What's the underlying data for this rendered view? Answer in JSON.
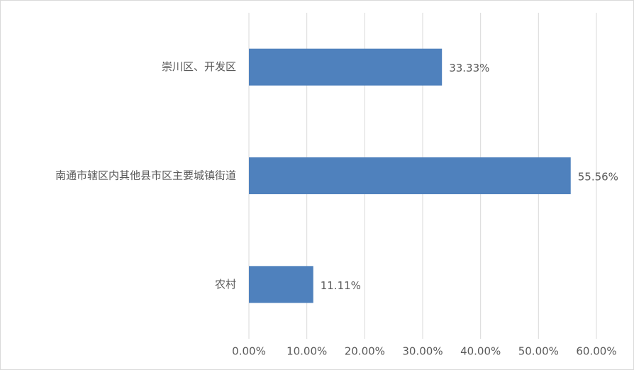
{
  "chart_data": {
    "type": "bar",
    "orientation": "horizontal",
    "color": "#4f81bd",
    "grid": true,
    "categories": [
      "崇川区、开发区",
      "南通市辖区内其他县市区主要城镇街道",
      "农村"
    ],
    "values": [
      33.33,
      55.56,
      11.11
    ],
    "value_labels": [
      "33.33%",
      "55.56%",
      "11.11%"
    ],
    "xlim": [
      0,
      60
    ],
    "xticks": [
      {
        "value": 0,
        "label": "0.00%"
      },
      {
        "value": 10,
        "label": "10.00%"
      },
      {
        "value": 20,
        "label": "20.00%"
      },
      {
        "value": 30,
        "label": "30.00%"
      },
      {
        "value": 40,
        "label": "40.00%"
      },
      {
        "value": 50,
        "label": "50.00%"
      },
      {
        "value": 60,
        "label": "60.00%"
      }
    ]
  }
}
